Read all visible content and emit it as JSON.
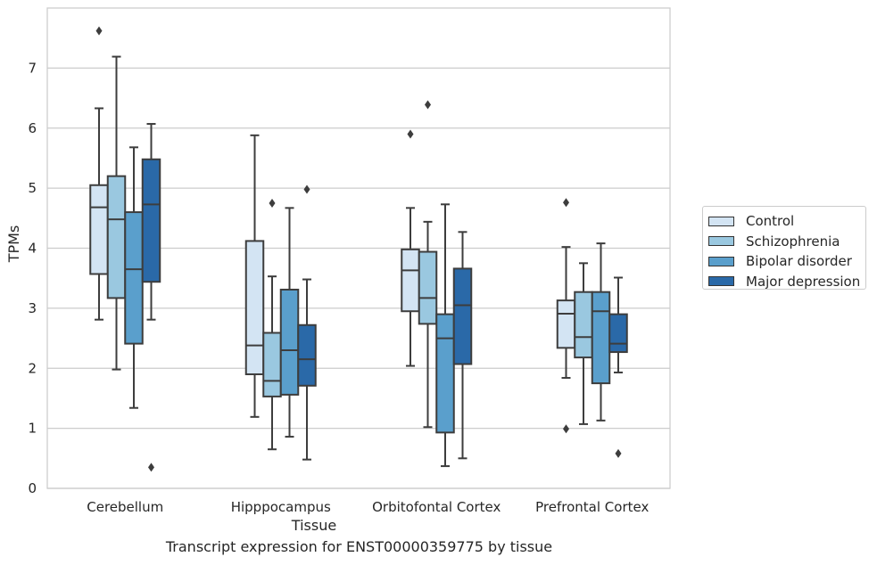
{
  "caption": "Transcript expression for ENST00000359775 by tissue",
  "chart_data": {
    "type": "box",
    "xlabel": "Tissue",
    "ylabel": "TPMs",
    "ylim": [
      0,
      8
    ],
    "yticks": [
      0,
      1,
      2,
      3,
      4,
      5,
      6,
      7
    ],
    "categories": [
      "Cerebellum",
      "Hipppocampus",
      "Orbitofontal Cortex",
      "Prefrontal Cortex"
    ],
    "grid": "horizontal",
    "legend_position": "right",
    "series": [
      {
        "name": "Control",
        "color": "#d3e4f3",
        "boxes": [
          {
            "whislo": 2.81,
            "q1": 3.57,
            "med": 4.68,
            "q3": 5.05,
            "whishi": 6.33,
            "fliers": [
              7.62
            ]
          },
          {
            "whislo": 1.19,
            "q1": 1.9,
            "med": 2.38,
            "q3": 4.12,
            "whishi": 5.88,
            "fliers": []
          },
          {
            "whislo": 2.04,
            "q1": 2.95,
            "med": 3.63,
            "q3": 3.98,
            "whishi": 4.67,
            "fliers": [
              5.9
            ]
          },
          {
            "whislo": 1.84,
            "q1": 2.34,
            "med": 2.91,
            "q3": 3.13,
            "whishi": 4.02,
            "fliers": [
              4.76,
              0.99
            ]
          }
        ]
      },
      {
        "name": "Schizophrenia",
        "color": "#9ac8e0",
        "boxes": [
          {
            "whislo": 1.98,
            "q1": 3.17,
            "med": 4.48,
            "q3": 5.2,
            "whishi": 7.19,
            "fliers": []
          },
          {
            "whislo": 0.65,
            "q1": 1.53,
            "med": 1.79,
            "q3": 2.59,
            "whishi": 3.53,
            "fliers": [
              4.75
            ]
          },
          {
            "whislo": 1.02,
            "q1": 2.74,
            "med": 3.17,
            "q3": 3.94,
            "whishi": 4.44,
            "fliers": [
              6.39
            ]
          },
          {
            "whislo": 1.07,
            "q1": 2.18,
            "med": 2.52,
            "q3": 3.27,
            "whishi": 3.75,
            "fliers": []
          }
        ]
      },
      {
        "name": "Bipolar disorder",
        "color": "#5a9fcc",
        "boxes": [
          {
            "whislo": 1.34,
            "q1": 2.41,
            "med": 3.65,
            "q3": 4.6,
            "whishi": 5.68,
            "fliers": []
          },
          {
            "whislo": 0.86,
            "q1": 1.56,
            "med": 2.3,
            "q3": 3.31,
            "whishi": 4.67,
            "fliers": []
          },
          {
            "whislo": 0.37,
            "q1": 0.93,
            "med": 2.5,
            "q3": 2.9,
            "whishi": 4.73,
            "fliers": []
          },
          {
            "whislo": 1.13,
            "q1": 1.75,
            "med": 2.95,
            "q3": 3.27,
            "whishi": 4.08,
            "fliers": []
          }
        ]
      },
      {
        "name": "Major depression",
        "color": "#2a69a8",
        "boxes": [
          {
            "whislo": 2.81,
            "q1": 3.44,
            "med": 4.73,
            "q3": 5.48,
            "whishi": 6.07,
            "fliers": [
              0.35
            ]
          },
          {
            "whislo": 0.48,
            "q1": 1.71,
            "med": 2.15,
            "q3": 2.72,
            "whishi": 3.48,
            "fliers": [
              4.98
            ]
          },
          {
            "whislo": 0.5,
            "q1": 2.07,
            "med": 3.05,
            "q3": 3.66,
            "whishi": 4.27,
            "fliers": []
          },
          {
            "whislo": 1.93,
            "q1": 2.27,
            "med": 2.41,
            "q3": 2.9,
            "whishi": 3.51,
            "fliers": [
              0.58
            ]
          }
        ]
      }
    ]
  }
}
